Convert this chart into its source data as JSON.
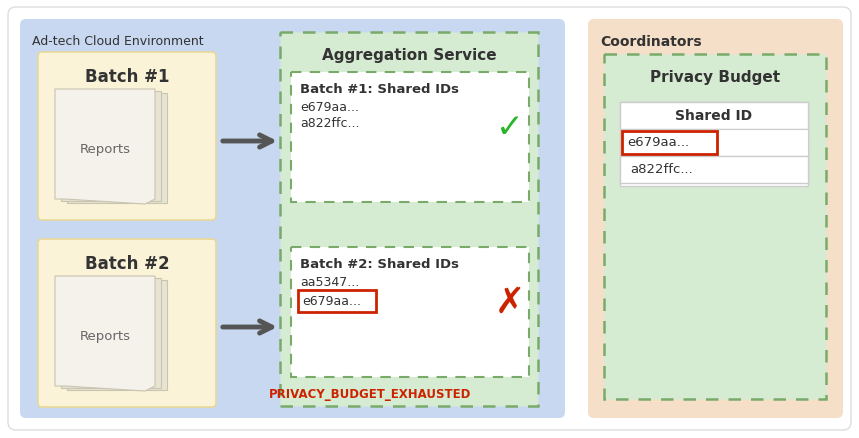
{
  "bg_color": "#ffffff",
  "adtech_bg": "#c8d8f0",
  "adtech_label": "Ad-tech Cloud Environment",
  "coordinators_bg": "#f5dfc8",
  "coordinators_label": "Coordinators",
  "agg_service_bg": "#d6ecd2",
  "agg_service_label": "Aggregation Service",
  "privacy_budget_bg": "#d6ecd2",
  "privacy_budget_label": "Privacy Budget",
  "batch1_bg": "#faf3d8",
  "batch2_bg": "#faf3d8",
  "batch1_label": "Batch #1",
  "batch2_label": "Batch #2",
  "reports_label": "Reports",
  "batch1_ids_title": "Batch #1: Shared IDs",
  "batch1_id1": "e679aa...",
  "batch1_id2": "a822ffc...",
  "batch2_ids_title": "Batch #2: Shared IDs",
  "batch2_id1": "aa5347...",
  "batch2_id2": "e679aa...",
  "exhausted_label": "PRIVACY_BUDGET_EXHAUSTED",
  "shared_id_header": "Shared ID",
  "shared_id1": "e679aa...",
  "shared_id2": "a822ffc...",
  "dashed_border_color": "#7aaa6a",
  "red_border_color": "#cc2200",
  "red_text_color": "#cc2200",
  "dark_text": "#333333",
  "arrow_color": "#555555",
  "paper_main": "#f0ede0",
  "paper_offset": "#e8e4d4",
  "paper_edge": "#c8c4b0"
}
